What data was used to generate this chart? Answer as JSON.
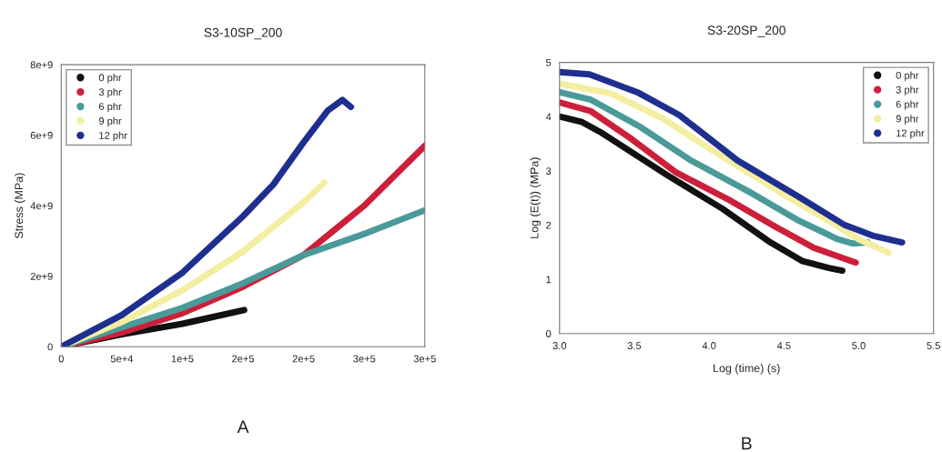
{
  "chart_data": [
    {
      "type": "line",
      "title": "S3-10SP_200",
      "ylabel": "Stress (MPa)",
      "annotations": [
        "A"
      ],
      "legend": "top left",
      "grid": false,
      "marker": "none",
      "xlim": [
        0,
        300000
      ],
      "xticks": [
        0,
        {
          "value": 50000,
          "label": "5e+4"
        },
        {
          "value": 100000,
          "label": "1e+5"
        },
        {
          "value": 150000,
          "label": "2e+5"
        },
        {
          "value": 200000,
          "label": "2e+5"
        },
        {
          "value": 250000,
          "label": "3e+5"
        },
        {
          "value": 300000,
          "label": "3e+5"
        }
      ],
      "ylim": [
        0,
        8000000000
      ],
      "yticks": [
        0,
        {
          "value": 2000000000,
          "label": "2e+9"
        },
        {
          "value": 4000000000,
          "label": "4e+9"
        },
        {
          "value": 6000000000,
          "label": "6e+9"
        },
        {
          "value": 8000000000,
          "label": "8e+9"
        }
      ],
      "series": [
        {
          "name": "0 phr",
          "color": "#111111",
          "x": [
            0,
            50000,
            100000,
            151000
          ],
          "values": [
            0,
            350000000,
            650000000,
            1040000000
          ]
        },
        {
          "name": "3 phr",
          "color": "#cc1f3a",
          "x": [
            0,
            50000,
            100000,
            150000,
            200000,
            250000,
            300000
          ],
          "values": [
            0,
            400000000,
            950000000,
            1700000000,
            2600000000,
            4000000000,
            5700000000
          ]
        },
        {
          "name": "6 phr",
          "color": "#4a9a9a",
          "x": [
            0,
            50000,
            100000,
            150000,
            200000,
            250000,
            300000
          ],
          "values": [
            0,
            550000000,
            1100000000,
            1800000000,
            2600000000,
            3200000000,
            3870000000
          ]
        },
        {
          "name": "9 phr",
          "color": "#f3eea0",
          "x": [
            0,
            50000,
            100000,
            150000,
            200000,
            217000
          ],
          "values": [
            0,
            700000000,
            1600000000,
            2700000000,
            4100000000,
            4650000000
          ]
        },
        {
          "name": "12 phr",
          "color": "#1f2f8f",
          "x": [
            0,
            50000,
            100000,
            150000,
            175000,
            200000,
            220000,
            232000,
            239000
          ],
          "values": [
            0,
            900000000,
            2100000000,
            3700000000,
            4600000000,
            5800000000,
            6700000000,
            7000000000,
            6800000000
          ]
        }
      ]
    },
    {
      "type": "line",
      "title": "S3-20SP_200",
      "xlabel": "Log (time) (s)",
      "ylabel": "Log (E(t)) (MPa)",
      "annotations": [
        "B"
      ],
      "legend": "top right",
      "grid": false,
      "marker": "none",
      "xlim": [
        3.0,
        5.5
      ],
      "xticks": [
        {
          "value": 3.0,
          "label": "3.0"
        },
        3.5,
        {
          "value": 4.0,
          "label": "4.0"
        },
        4.5,
        {
          "value": 5.0,
          "label": "5.0"
        },
        5.5
      ],
      "ylim": [
        0,
        5
      ],
      "yticks": [
        0,
        1,
        2,
        3,
        4,
        5
      ],
      "series": [
        {
          "name": "0 phr",
          "color": "#111111",
          "x": [
            3.0,
            3.15,
            3.27,
            3.72,
            4.09,
            4.41,
            4.62,
            4.8,
            4.89
          ],
          "values": [
            4.0,
            3.9,
            3.72,
            2.92,
            2.3,
            1.68,
            1.34,
            1.21,
            1.16
          ]
        },
        {
          "name": "3 phr",
          "color": "#cc1f3a",
          "x": [
            3.0,
            3.21,
            3.48,
            3.78,
            4.13,
            4.45,
            4.7,
            4.98
          ],
          "values": [
            4.26,
            4.1,
            3.59,
            2.97,
            2.47,
            1.96,
            1.58,
            1.31
          ]
        },
        {
          "name": "6 phr",
          "color": "#4a9a9a",
          "x": [
            3.0,
            3.21,
            3.54,
            3.88,
            4.29,
            4.6,
            4.86,
            4.96,
            5.06
          ],
          "values": [
            4.45,
            4.31,
            3.81,
            3.19,
            2.58,
            2.08,
            1.74,
            1.66,
            1.68
          ]
        },
        {
          "name": "9 phr",
          "color": "#f3eea0",
          "x": [
            3.0,
            3.34,
            3.68,
            4.09,
            4.49,
            4.8,
            5.0,
            5.2
          ],
          "values": [
            4.61,
            4.43,
            3.98,
            3.26,
            2.58,
            2.08,
            1.74,
            1.49
          ]
        },
        {
          "name": "12 phr",
          "color": "#1f2f8f",
          "x": [
            3.0,
            3.2,
            3.52,
            3.8,
            4.19,
            4.6,
            4.9,
            5.1,
            5.29
          ],
          "values": [
            4.82,
            4.78,
            4.45,
            4.03,
            3.19,
            2.52,
            2.01,
            1.8,
            1.68
          ]
        }
      ]
    }
  ]
}
